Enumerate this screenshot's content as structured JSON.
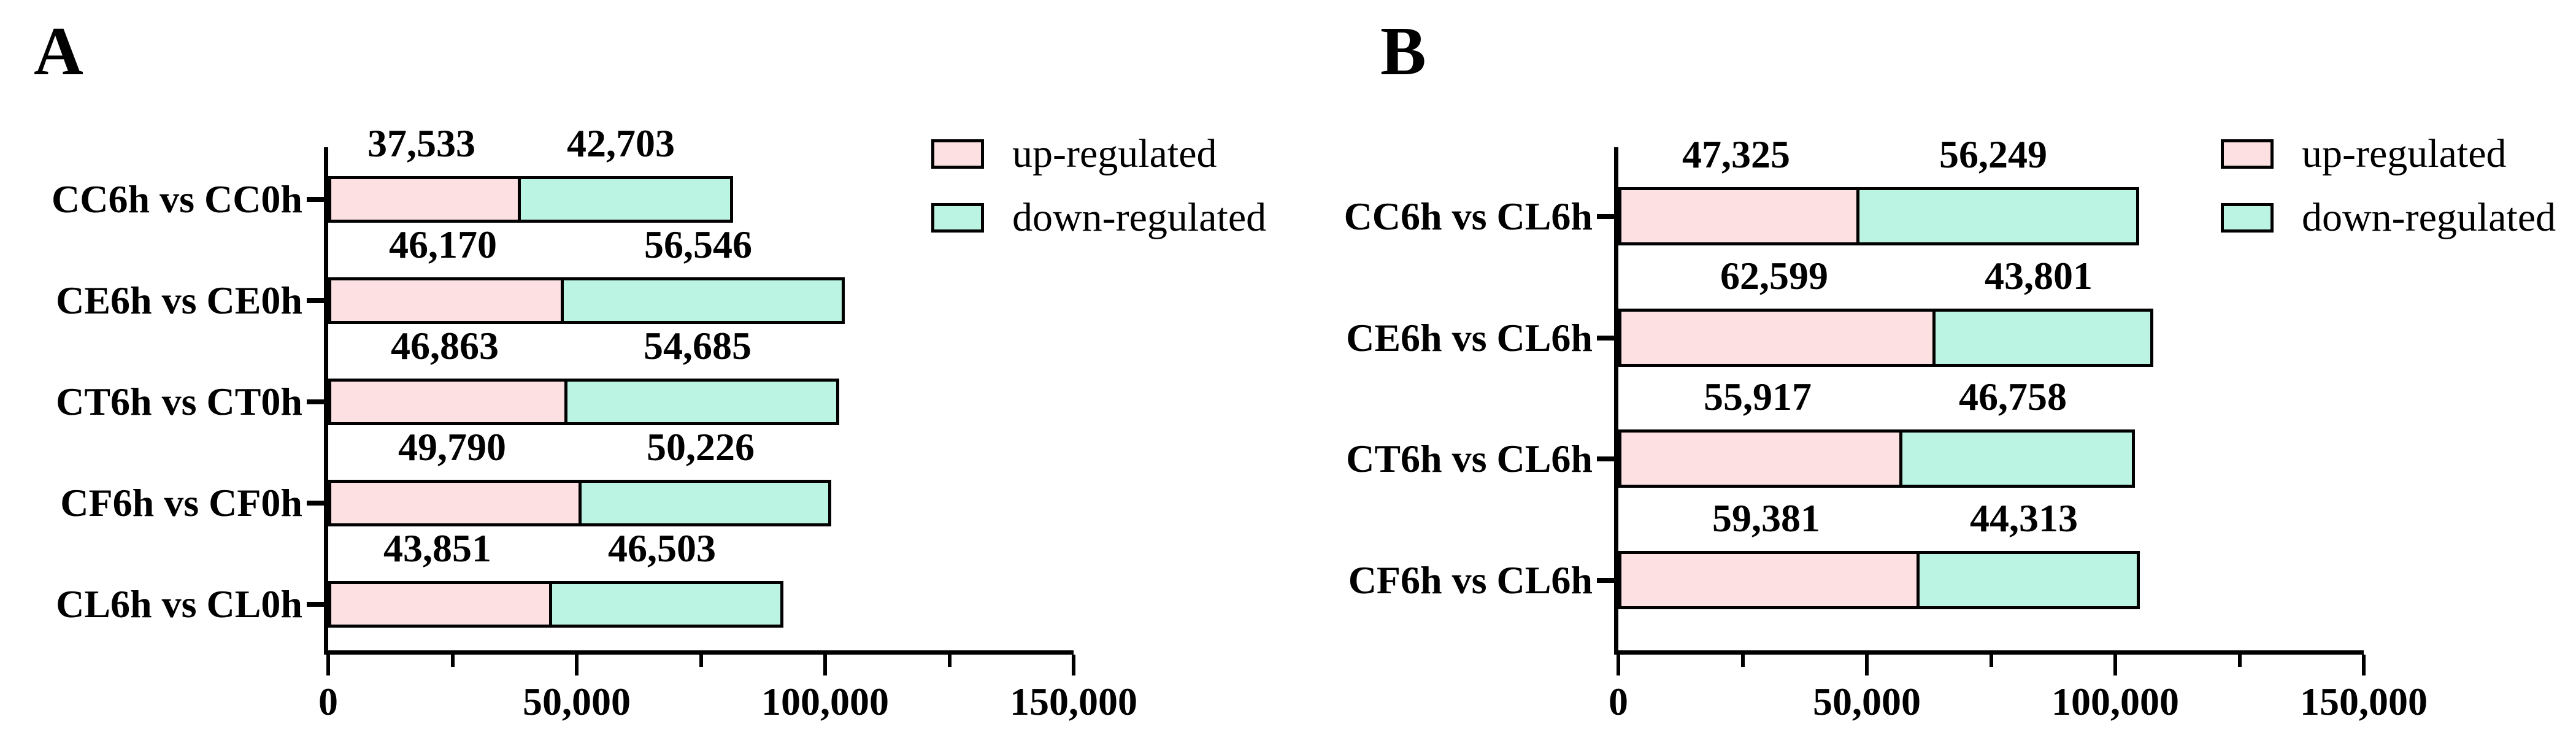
{
  "figure": {
    "bar_border_color": "#000000",
    "axis_color": "#000000",
    "text_color": "#000000",
    "background_color": "#ffffff"
  },
  "legend": {
    "up_label": "up-regulated",
    "down_label": "down-regulated",
    "up_color": "#FCE0E2",
    "down_color": "#BBF4E2"
  },
  "chart_data": [
    {
      "type": "bar",
      "orientation": "horizontal-stacked",
      "panel_label": "A",
      "categories": [
        "CC6h vs CC0h",
        "CE6h vs CE0h",
        "CT6h vs CT0h",
        "CF6h vs CF0h",
        "CL6h vs CL0h"
      ],
      "series": [
        {
          "name": "up-regulated",
          "color": "#FCE0E2",
          "values": [
            37533,
            46170,
            46863,
            49790,
            43851
          ]
        },
        {
          "name": "down-regulated",
          "color": "#BBF4E2",
          "values": [
            42703,
            56546,
            54685,
            50226,
            46503
          ]
        }
      ],
      "title": "",
      "xlabel": "",
      "ylabel": "",
      "xlim": [
        0,
        150000
      ],
      "x_ticks": [
        0,
        50000,
        100000,
        150000
      ],
      "x_tick_labels": [
        "0",
        "50,000",
        "100,000",
        "150,000"
      ],
      "x_minor_ticks": [
        25000,
        75000,
        125000
      ],
      "grid": false,
      "legend_position": "top-right",
      "value_labels_shown": true
    },
    {
      "type": "bar",
      "orientation": "horizontal-stacked",
      "panel_label": "B",
      "categories": [
        "CC6h vs CL6h",
        "CE6h vs CL6h",
        "CT6h vs CL6h",
        "CF6h vs CL6h"
      ],
      "series": [
        {
          "name": "up-regulated",
          "color": "#FCE0E2",
          "values": [
            47325,
            62599,
            55917,
            59381
          ]
        },
        {
          "name": "down-regulated",
          "color": "#BBF4E2",
          "values": [
            56249,
            43801,
            46758,
            44313
          ]
        }
      ],
      "title": "",
      "xlabel": "",
      "ylabel": "",
      "xlim": [
        0,
        150000
      ],
      "x_ticks": [
        0,
        50000,
        100000,
        150000
      ],
      "x_tick_labels": [
        "0",
        "50,000",
        "100,000",
        "150,000"
      ],
      "x_minor_ticks": [
        25000,
        75000,
        125000
      ],
      "grid": false,
      "legend_position": "top-right",
      "value_labels_shown": true
    }
  ]
}
